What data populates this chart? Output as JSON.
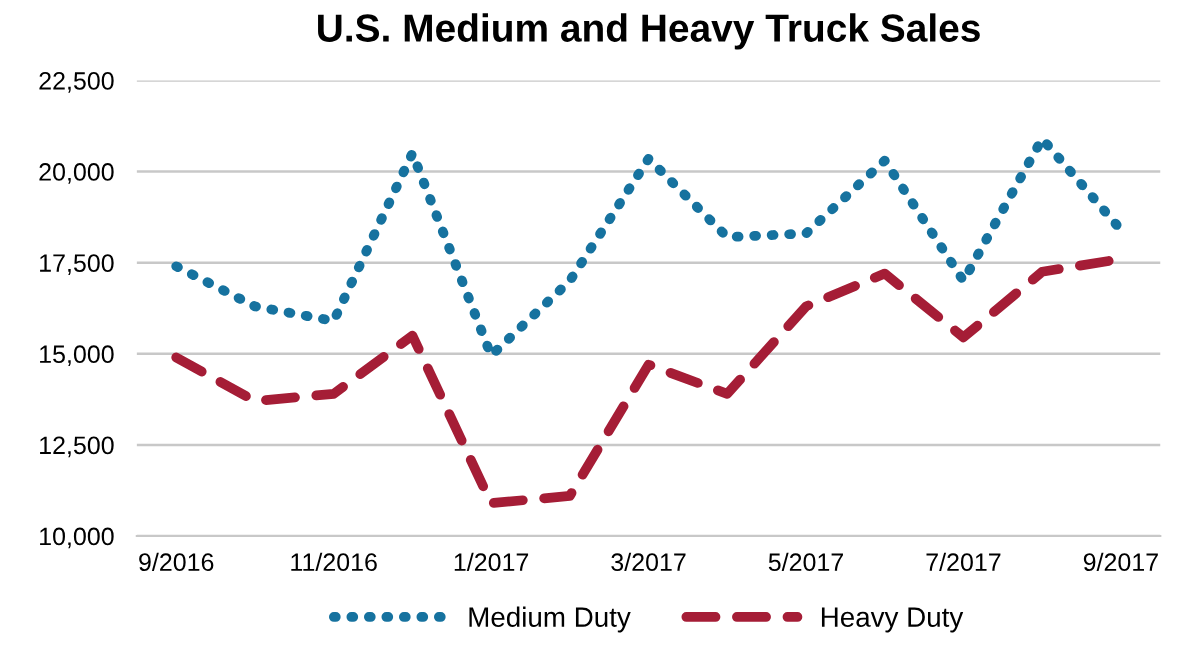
{
  "chart_data": {
    "type": "line",
    "title": "U.S. Medium and Heavy Truck Sales",
    "categories": [
      "9/2016",
      null,
      "11/2016",
      null,
      "1/2017",
      null,
      "3/2017",
      null,
      "5/2017",
      null,
      "7/2017",
      null,
      "9/2017"
    ],
    "series": [
      {
        "name": "Medium Duty",
        "color": "#16729f",
        "line_style": "dotted",
        "values": [
          17400,
          16300,
          15900,
          20500,
          14950,
          17000,
          20350,
          18200,
          18300,
          20300,
          17000,
          20900,
          18400
        ]
      },
      {
        "name": "Heavy Duty",
        "color": "#a51d36",
        "line_style": "dashed",
        "values": [
          14900,
          13700,
          13900,
          15500,
          10900,
          11100,
          14700,
          13900,
          16300,
          17200,
          15450,
          17250,
          17600
        ]
      }
    ],
    "ylim": [
      10000,
      22500
    ],
    "yticks": [
      {
        "value": 10000,
        "label": "10,000"
      },
      {
        "value": 12500,
        "label": "12,500"
      },
      {
        "value": 15000,
        "label": "15,000"
      },
      {
        "value": 17500,
        "label": "17,500"
      },
      {
        "value": 20000,
        "label": "20,000"
      },
      {
        "value": 22500,
        "label": "22,500"
      }
    ],
    "grid": "y",
    "legend": "bottom",
    "marker": "none"
  }
}
